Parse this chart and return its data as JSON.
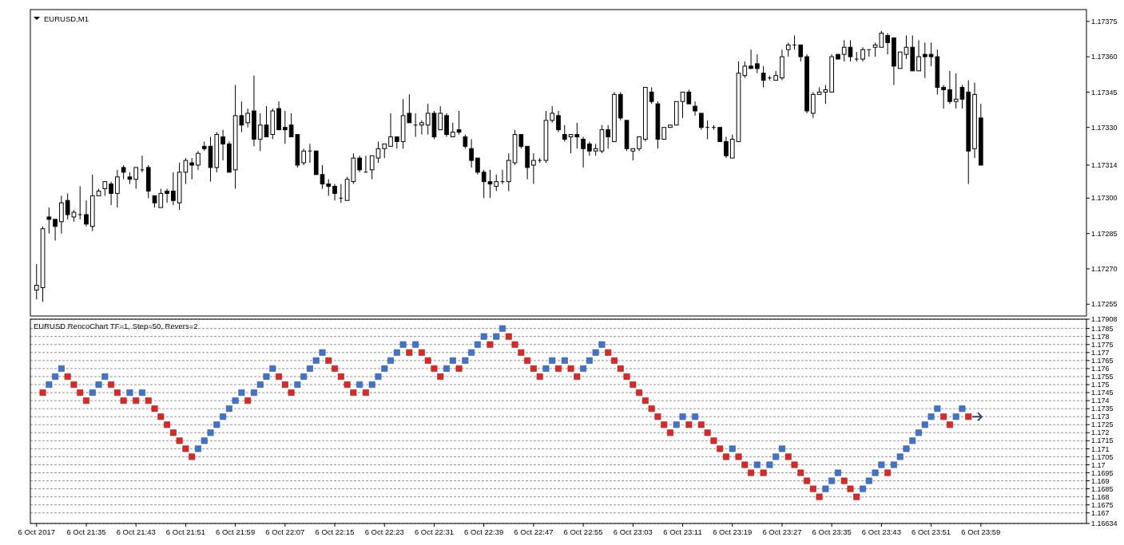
{
  "chart_data": [
    {
      "type": "candlestick",
      "title": "EURUSD,M1",
      "tick_labels": "y",
      "xlim": [
        "2017-10-06T21:26",
        "2017-10-07T00:16"
      ],
      "ylim": [
        1.1725,
        1.1738
      ],
      "yticks": [
        1.17255,
        {
          "value": 1.1727,
          "label": "1.17270"
        },
        1.17285,
        {
          "value": 1.173,
          "label": "1.17300"
        },
        1.17314,
        {
          "value": 1.1733,
          "label": "1.17330"
        },
        1.17345,
        {
          "value": 1.1736,
          "label": "1.17360"
        },
        1.17375
      ],
      "x": [
        "2017-10-06T21:27",
        "2017-10-06T21:28",
        "2017-10-06T21:29",
        "2017-10-06T21:30",
        "2017-10-06T21:31",
        "2017-10-06T21:32",
        "2017-10-06T21:33",
        "2017-10-06T21:34",
        "2017-10-06T21:35",
        "2017-10-06T21:36",
        "2017-10-06T21:37",
        "2017-10-06T21:38",
        "2017-10-06T21:39",
        "2017-10-06T21:40",
        "2017-10-06T21:41",
        "2017-10-06T21:42",
        "2017-10-06T21:43",
        "2017-10-06T21:44",
        "2017-10-06T21:45",
        "2017-10-06T21:46",
        "2017-10-06T21:47",
        "2017-10-06T21:48",
        "2017-10-06T21:49",
        "2017-10-06T21:50",
        "2017-10-06T21:51",
        "2017-10-06T21:52",
        "2017-10-06T21:53",
        "2017-10-06T21:54",
        "2017-10-06T21:55",
        "2017-10-06T21:56",
        "2017-10-06T21:57",
        "2017-10-06T21:58",
        "2017-10-06T21:59",
        "2017-10-06T22:00",
        "2017-10-06T22:01",
        "2017-10-06T22:02",
        "2017-10-06T22:03",
        "2017-10-06T22:04",
        "2017-10-06T22:05",
        "2017-10-06T22:06",
        "2017-10-06T22:07",
        "2017-10-06T22:08",
        "2017-10-06T22:09",
        "2017-10-06T22:10",
        "2017-10-06T22:11",
        "2017-10-06T22:12",
        "2017-10-06T22:13",
        "2017-10-06T22:14",
        "2017-10-06T22:15",
        "2017-10-06T22:16",
        "2017-10-06T22:17",
        "2017-10-06T22:18",
        "2017-10-06T22:19",
        "2017-10-06T22:20",
        "2017-10-06T22:21",
        "2017-10-06T22:22",
        "2017-10-06T22:23",
        "2017-10-06T22:24",
        "2017-10-06T22:25",
        "2017-10-06T22:26",
        "2017-10-06T22:27",
        "2017-10-06T22:28",
        "2017-10-06T22:29",
        "2017-10-06T22:30",
        "2017-10-06T22:31",
        "2017-10-06T22:32",
        "2017-10-06T22:33",
        "2017-10-06T22:34",
        "2017-10-06T22:35",
        "2017-10-06T22:36",
        "2017-10-06T22:37",
        "2017-10-06T22:38",
        "2017-10-06T22:39",
        "2017-10-06T22:40",
        "2017-10-06T22:41",
        "2017-10-06T22:42",
        "2017-10-06T22:43",
        "2017-10-06T22:44",
        "2017-10-06T22:45",
        "2017-10-06T22:46",
        "2017-10-06T22:47",
        "2017-10-06T22:48",
        "2017-10-06T22:49",
        "2017-10-06T22:50",
        "2017-10-06T22:51",
        "2017-10-06T22:52",
        "2017-10-06T22:53",
        "2017-10-06T22:54",
        "2017-10-06T22:55",
        "2017-10-06T22:56",
        "2017-10-06T22:57",
        "2017-10-06T22:58",
        "2017-10-06T22:59",
        "2017-10-06T23:00",
        "2017-10-06T23:01",
        "2017-10-06T23:02",
        "2017-10-06T23:03",
        "2017-10-06T23:04",
        "2017-10-06T23:05",
        "2017-10-06T23:06",
        "2017-10-06T23:07",
        "2017-10-06T23:08",
        "2017-10-06T23:09",
        "2017-10-06T23:10",
        "2017-10-06T23:11",
        "2017-10-06T23:12",
        "2017-10-06T23:13",
        "2017-10-06T23:14",
        "2017-10-06T23:15",
        "2017-10-06T23:16",
        "2017-10-06T23:17",
        "2017-10-06T23:18",
        "2017-10-06T23:19",
        "2017-10-06T23:20",
        "2017-10-06T23:21",
        "2017-10-06T23:22",
        "2017-10-06T23:23",
        "2017-10-06T23:24",
        "2017-10-06T23:25",
        "2017-10-06T23:26",
        "2017-10-06T23:27",
        "2017-10-06T23:28",
        "2017-10-06T23:29",
        "2017-10-06T23:30",
        "2017-10-06T23:31",
        "2017-10-06T23:32",
        "2017-10-06T23:33",
        "2017-10-06T23:34",
        "2017-10-06T23:35",
        "2017-10-06T23:36",
        "2017-10-06T23:37",
        "2017-10-06T23:38",
        "2017-10-06T23:39",
        "2017-10-06T23:40",
        "2017-10-06T23:41",
        "2017-10-06T23:42",
        "2017-10-06T23:43",
        "2017-10-06T23:44",
        "2017-10-06T23:45",
        "2017-10-06T23:46",
        "2017-10-06T23:47",
        "2017-10-06T23:48",
        "2017-10-06T23:49",
        "2017-10-06T23:50",
        "2017-10-06T23:51",
        "2017-10-06T23:52",
        "2017-10-06T23:53",
        "2017-10-06T23:54",
        "2017-10-06T23:55",
        "2017-10-06T23:56",
        "2017-10-06T23:57",
        "2017-10-06T23:58",
        "2017-10-06T23:59"
      ],
      "ohlc": [
        [
          1.17261,
          1.17272,
          1.17257,
          1.17263
        ],
        [
          1.17262,
          1.17288,
          1.17256,
          1.17287
        ],
        [
          1.17292,
          1.17296,
          1.17285,
          1.17291
        ],
        [
          1.17291,
          1.17291,
          1.17282,
          1.17288
        ],
        [
          1.1729,
          1.17301,
          1.17285,
          1.17298
        ],
        [
          1.17299,
          1.17302,
          1.17291,
          1.17293
        ],
        [
          1.17292,
          1.17295,
          1.1729,
          1.17294
        ],
        [
          1.17293,
          1.17305,
          1.17291,
          1.17293
        ],
        [
          1.17293,
          1.17299,
          1.17288,
          1.17289
        ],
        [
          1.17288,
          1.1731,
          1.17286,
          1.17301
        ],
        [
          1.17301,
          1.17304,
          1.17301,
          1.17303
        ],
        [
          1.17304,
          1.17307,
          1.17301,
          1.17307
        ],
        [
          1.17306,
          1.17307,
          1.17297,
          1.17302
        ],
        [
          1.17302,
          1.17312,
          1.17296,
          1.17309
        ],
        [
          1.17313,
          1.17314,
          1.17308,
          1.17311
        ],
        [
          1.17309,
          1.17311,
          1.17306,
          1.17308
        ],
        [
          1.17308,
          1.17313,
          1.17304,
          1.17313
        ],
        [
          1.17312,
          1.17318,
          1.17311,
          1.17312
        ],
        [
          1.17313,
          1.17314,
          1.173,
          1.17303
        ],
        [
          1.17301,
          1.17301,
          1.17296,
          1.17298
        ],
        [
          1.17296,
          1.17304,
          1.17296,
          1.17302
        ],
        [
          1.17303,
          1.17304,
          1.17298,
          1.17302
        ],
        [
          1.17303,
          1.17311,
          1.17297,
          1.17299
        ],
        [
          1.17298,
          1.17315,
          1.17295,
          1.17311
        ],
        [
          1.17311,
          1.17317,
          1.17306,
          1.17316
        ],
        [
          1.17315,
          1.17317,
          1.17308,
          1.17314
        ],
        [
          1.17314,
          1.1732,
          1.17312,
          1.17319
        ],
        [
          1.17322,
          1.17324,
          1.1732,
          1.17321
        ],
        [
          1.17322,
          1.17326,
          1.17307,
          1.17313
        ],
        [
          1.17313,
          1.17328,
          1.17311,
          1.17327
        ],
        [
          1.17326,
          1.17329,
          1.17316,
          1.17323
        ],
        [
          1.17323,
          1.17324,
          1.17311,
          1.17311
        ],
        [
          1.17312,
          1.17348,
          1.17304,
          1.17335
        ],
        [
          1.17335,
          1.17341,
          1.17328,
          1.17331
        ],
        [
          1.17332,
          1.17338,
          1.1733,
          1.17336
        ],
        [
          1.17337,
          1.17352,
          1.17322,
          1.17325
        ],
        [
          1.17325,
          1.17336,
          1.1732,
          1.17331
        ],
        [
          1.17331,
          1.17339,
          1.17326,
          1.17326
        ],
        [
          1.17327,
          1.17338,
          1.17325,
          1.17337
        ],
        [
          1.17338,
          1.17341,
          1.17329,
          1.17329
        ],
        [
          1.1733,
          1.17337,
          1.17323,
          1.17329
        ],
        [
          1.17331,
          1.17336,
          1.17326,
          1.17326
        ],
        [
          1.17327,
          1.17327,
          1.17313,
          1.17314
        ],
        [
          1.17315,
          1.17321,
          1.17314,
          1.1732
        ],
        [
          1.1732,
          1.17323,
          1.17315,
          1.1732
        ],
        [
          1.1732,
          1.1732,
          1.1731,
          1.1731
        ],
        [
          1.1731,
          1.17314,
          1.17304,
          1.17306
        ],
        [
          1.17306,
          1.17308,
          1.17301,
          1.17305
        ],
        [
          1.17305,
          1.17306,
          1.17299,
          1.17302
        ],
        [
          1.173,
          1.17306,
          1.17298,
          1.173
        ],
        [
          1.17299,
          1.17309,
          1.17299,
          1.17308
        ],
        [
          1.17307,
          1.17319,
          1.17306,
          1.17317
        ],
        [
          1.17317,
          1.17318,
          1.17311,
          1.17312
        ],
        [
          1.17311,
          1.17318,
          1.17311,
          1.17311
        ],
        [
          1.17312,
          1.17318,
          1.17308,
          1.17318
        ],
        [
          1.17317,
          1.17324,
          1.17315,
          1.17321
        ],
        [
          1.17321,
          1.17323,
          1.17317,
          1.17323
        ],
        [
          1.17322,
          1.17336,
          1.17322,
          1.17326
        ],
        [
          1.17326,
          1.17326,
          1.17321,
          1.17324
        ],
        [
          1.17324,
          1.17342,
          1.17321,
          1.17335
        ],
        [
          1.17336,
          1.17344,
          1.17332,
          1.17332
        ],
        [
          1.17331,
          1.17336,
          1.17326,
          1.17331
        ],
        [
          1.17331,
          1.17333,
          1.17327,
          1.17332
        ],
        [
          1.17331,
          1.1734,
          1.17327,
          1.17336
        ],
        [
          1.17336,
          1.17337,
          1.17325,
          1.17326
        ],
        [
          1.17329,
          1.17339,
          1.17329,
          1.17336
        ],
        [
          1.17335,
          1.17336,
          1.17326,
          1.17327
        ],
        [
          1.17326,
          1.17332,
          1.17326,
          1.17328
        ],
        [
          1.17329,
          1.17337,
          1.17327,
          1.17328
        ],
        [
          1.17326,
          1.17327,
          1.17321,
          1.17322
        ],
        [
          1.17321,
          1.17325,
          1.17313,
          1.17316
        ],
        [
          1.17317,
          1.17317,
          1.1731,
          1.17311
        ],
        [
          1.17311,
          1.17312,
          1.173,
          1.17307
        ],
        [
          1.17307,
          1.17312,
          1.173,
          1.17306
        ],
        [
          1.17305,
          1.1731,
          1.17303,
          1.17307
        ],
        [
          1.17307,
          1.17312,
          1.17306,
          1.17307
        ],
        [
          1.17307,
          1.17319,
          1.17303,
          1.17316
        ],
        [
          1.17315,
          1.17329,
          1.17314,
          1.17327
        ],
        [
          1.17327,
          1.17327,
          1.17321,
          1.17322
        ],
        [
          1.17322,
          1.17322,
          1.17308,
          1.17313
        ],
        [
          1.17314,
          1.17319,
          1.17306,
          1.17316
        ],
        [
          1.17316,
          1.17317,
          1.17315,
          1.17316
        ],
        [
          1.17316,
          1.17337,
          1.17315,
          1.17333
        ],
        [
          1.17333,
          1.17339,
          1.17332,
          1.17336
        ],
        [
          1.17335,
          1.17337,
          1.17328,
          1.17329
        ],
        [
          1.17327,
          1.17331,
          1.17324,
          1.17325
        ],
        [
          1.17326,
          1.17327,
          1.17319,
          1.17327
        ],
        [
          1.17327,
          1.17332,
          1.17321,
          1.17326
        ],
        [
          1.17325,
          1.17326,
          1.17313,
          1.17321
        ],
        [
          1.17323,
          1.17324,
          1.17318,
          1.1732
        ],
        [
          1.1732,
          1.17323,
          1.17318,
          1.17321
        ],
        [
          1.1732,
          1.17331,
          1.17319,
          1.17329
        ],
        [
          1.17329,
          1.17331,
          1.17321,
          1.17326
        ],
        [
          1.17324,
          1.17345,
          1.17324,
          1.17344
        ],
        [
          1.17344,
          1.17345,
          1.17333,
          1.17334
        ],
        [
          1.17333,
          1.17333,
          1.1732,
          1.17321
        ],
        [
          1.1732,
          1.17321,
          1.17316,
          1.17321
        ],
        [
          1.17321,
          1.17326,
          1.1732,
          1.17326
        ],
        [
          1.17325,
          1.17347,
          1.17324,
          1.17347
        ],
        [
          1.17345,
          1.17347,
          1.1734,
          1.17341
        ],
        [
          1.1734,
          1.17341,
          1.17321,
          1.17325
        ],
        [
          1.17325,
          1.1733,
          1.17325,
          1.1733
        ],
        [
          1.1733,
          1.17331,
          1.1733,
          1.17331
        ],
        [
          1.17331,
          1.17341,
          1.17331,
          1.17341
        ],
        [
          1.17341,
          1.17345,
          1.17334,
          1.17345
        ],
        [
          1.17345,
          1.17346,
          1.1734,
          1.1734
        ],
        [
          1.17339,
          1.17341,
          1.17335,
          1.17337
        ],
        [
          1.17336,
          1.17336,
          1.17329,
          1.1733
        ],
        [
          1.1733,
          1.17333,
          1.17325,
          1.1733
        ],
        [
          1.1733,
          1.17331,
          1.17329,
          1.1733
        ],
        [
          1.1733,
          1.1733,
          1.17324,
          1.17324
        ],
        [
          1.17324,
          1.17326,
          1.17317,
          1.17318
        ],
        [
          1.17317,
          1.17327,
          1.17317,
          1.17325
        ],
        [
          1.17324,
          1.17358,
          1.17324,
          1.17353
        ],
        [
          1.17352,
          1.17358,
          1.17351,
          1.17356
        ],
        [
          1.17356,
          1.17363,
          1.17355,
          1.17355
        ],
        [
          1.17357,
          1.17361,
          1.17353,
          1.17355
        ],
        [
          1.17353,
          1.17356,
          1.17347,
          1.1735
        ],
        [
          1.17351,
          1.17352,
          1.1735,
          1.17351
        ],
        [
          1.1735,
          1.17354,
          1.1735,
          1.17352
        ],
        [
          1.17351,
          1.17363,
          1.1735,
          1.1736
        ],
        [
          1.17363,
          1.17366,
          1.1736,
          1.17365
        ],
        [
          1.17365,
          1.17369,
          1.17363,
          1.17365
        ],
        [
          1.17365,
          1.17365,
          1.17358,
          1.1736
        ],
        [
          1.1736,
          1.17361,
          1.17336,
          1.17337
        ],
        [
          1.17336,
          1.17345,
          1.17334,
          1.17344
        ],
        [
          1.17344,
          1.17347,
          1.17344,
          1.17345
        ],
        [
          1.17345,
          1.17348,
          1.1734,
          1.17346
        ],
        [
          1.17345,
          1.17361,
          1.17345,
          1.1736
        ],
        [
          1.17361,
          1.17361,
          1.17359,
          1.17359
        ],
        [
          1.17361,
          1.17367,
          1.17358,
          1.17364
        ],
        [
          1.17364,
          1.17367,
          1.17358,
          1.1736
        ],
        [
          1.17359,
          1.17362,
          1.17358,
          1.17359
        ],
        [
          1.17359,
          1.17364,
          1.17358,
          1.17363
        ],
        [
          1.17363,
          1.17363,
          1.1736,
          1.17363
        ],
        [
          1.17364,
          1.17366,
          1.1736,
          1.17365
        ],
        [
          1.17364,
          1.17371,
          1.17364,
          1.1737
        ],
        [
          1.17369,
          1.1737,
          1.17361,
          1.17366
        ],
        [
          1.17368,
          1.17368,
          1.17348,
          1.17356
        ],
        [
          1.17355,
          1.17362,
          1.17355,
          1.17362
        ],
        [
          1.17361,
          1.17369,
          1.17359,
          1.17364
        ],
        [
          1.17364,
          1.17369,
          1.17354,
          1.17354
        ],
        [
          1.17354,
          1.17367,
          1.17354,
          1.1736
        ],
        [
          1.17361,
          1.17366,
          1.17351,
          1.1736
        ],
        [
          1.17361,
          1.17366,
          1.17356,
          1.1736
        ],
        [
          1.1736,
          1.17363,
          1.17344,
          1.17347
        ],
        [
          1.17347,
          1.17348,
          1.17338,
          1.17346
        ],
        [
          1.17346,
          1.17354,
          1.1734,
          1.17341
        ],
        [
          1.17341,
          1.17353,
          1.17338,
          1.17342
        ],
        [
          1.17347,
          1.17348,
          1.17338,
          1.17342
        ],
        [
          1.17345,
          1.1735,
          1.17306,
          1.1732
        ],
        [
          1.17321,
          1.17349,
          1.17317,
          1.17344
        ],
        [
          1.17334,
          1.1734,
          1.17314,
          1.17314
        ]
      ]
    },
    {
      "type": "scatter",
      "title": "EURUSD RencoChart TF=1, Step=50, Revers=2",
      "marker": "square",
      "grid": "y",
      "xlim": [
        "2017-10-06T21:26",
        "2017-10-07T00:16"
      ],
      "ylim": [
        1.16634,
        1.17908
      ],
      "xticks": [
        {
          "value": "2017-10-06T21:27",
          "label": "6 Oct 2017"
        },
        {
          "value": "2017-10-06T21:35",
          "label": "6 Oct 21:35"
        },
        {
          "value": "2017-10-06T21:43",
          "label": "6 Oct 21:43"
        },
        {
          "value": "2017-10-06T21:51",
          "label": "6 Oct 21:51"
        },
        {
          "value": "2017-10-06T21:59",
          "label": "6 Oct 21:59"
        },
        {
          "value": "2017-10-06T22:07",
          "label": "6 Oct 22:07"
        },
        {
          "value": "2017-10-06T22:15",
          "label": "6 Oct 22:15"
        },
        {
          "value": "2017-10-06T22:23",
          "label": "6 Oct 22:23"
        },
        {
          "value": "2017-10-06T22:31",
          "label": "6 Oct 22:31"
        },
        {
          "value": "2017-10-06T22:39",
          "label": "6 Oct 22:39"
        },
        {
          "value": "2017-10-06T22:47",
          "label": "6 Oct 22:47"
        },
        {
          "value": "2017-10-06T22:55",
          "label": "6 Oct 22:55"
        },
        {
          "value": "2017-10-06T23:03",
          "label": "6 Oct 23:03"
        },
        {
          "value": "2017-10-06T23:11",
          "label": "6 Oct 23:11"
        },
        {
          "value": "2017-10-06T23:19",
          "label": "6 Oct 23:19"
        },
        {
          "value": "2017-10-06T23:27",
          "label": "6 Oct 23:27"
        },
        {
          "value": "2017-10-06T23:35",
          "label": "6 Oct 23:35"
        },
        {
          "value": "2017-10-06T23:43",
          "label": "6 Oct 23:43"
        },
        {
          "value": "2017-10-06T23:51",
          "label": "6 Oct 23:51"
        },
        {
          "value": "2017-10-06T23:59",
          "label": "6 Oct 23:59"
        }
      ],
      "yticks": [
        1.16634,
        1.167,
        1.1675,
        1.168,
        1.1685,
        1.169,
        1.1695,
        1.17,
        1.1705,
        1.171,
        1.1715,
        1.172,
        1.1725,
        1.173,
        1.1735,
        1.174,
        1.1745,
        1.175,
        1.1755,
        1.176,
        1.1765,
        1.177,
        1.1775,
        1.178,
        1.1785,
        1.17908
      ],
      "series": [
        {
          "color": "#4472c4",
          "x": [
            "2017-10-06T21:29",
            "2017-10-06T21:30",
            "2017-10-06T21:31",
            "2017-10-06T21:36",
            "2017-10-06T21:37",
            "2017-10-06T21:38",
            "2017-10-06T21:42",
            "2017-10-06T21:44",
            "2017-10-06T21:53",
            "2017-10-06T21:54",
            "2017-10-06T21:55",
            "2017-10-06T21:56",
            "2017-10-06T21:57",
            "2017-10-06T21:58",
            "2017-10-06T21:59",
            "2017-10-06T22:00",
            "2017-10-06T22:02",
            "2017-10-06T22:03",
            "2017-10-06T22:04",
            "2017-10-06T22:05",
            "2017-10-06T22:09",
            "2017-10-06T22:10",
            "2017-10-06T22:11",
            "2017-10-06T22:12",
            "2017-10-06T22:13",
            "2017-10-06T22:19",
            "2017-10-06T22:21",
            "2017-10-06T22:22",
            "2017-10-06T22:23",
            "2017-10-06T22:24",
            "2017-10-06T22:25",
            "2017-10-06T22:26",
            "2017-10-06T22:28",
            "2017-10-06T22:33",
            "2017-10-06T22:34",
            "2017-10-06T22:36",
            "2017-10-06T22:37",
            "2017-10-06T22:38",
            "2017-10-06T22:39",
            "2017-10-06T22:41",
            "2017-10-06T22:42",
            "2017-10-06T22:49",
            "2017-10-06T22:50",
            "2017-10-06T22:52",
            "2017-10-06T22:55",
            "2017-10-06T22:56",
            "2017-10-06T22:57",
            "2017-10-06T22:58",
            "2017-10-06T23:10",
            "2017-10-06T23:11",
            "2017-10-06T23:13",
            "2017-10-06T23:19",
            "2017-10-06T23:23",
            "2017-10-06T23:25",
            "2017-10-06T23:26",
            "2017-10-06T23:27",
            "2017-10-06T23:34",
            "2017-10-06T23:35",
            "2017-10-06T23:36",
            "2017-10-06T23:40",
            "2017-10-06T23:41",
            "2017-10-06T23:42",
            "2017-10-06T23:43",
            "2017-10-06T23:45",
            "2017-10-06T23:46",
            "2017-10-06T23:47",
            "2017-10-06T23:48",
            "2017-10-06T23:49",
            "2017-10-06T23:50",
            "2017-10-06T23:51",
            "2017-10-06T23:52",
            "2017-10-06T23:55",
            "2017-10-06T23:56"
          ],
          "values": [
            1.175,
            1.1755,
            1.176,
            1.1745,
            1.175,
            1.1755,
            1.1745,
            1.1745,
            1.171,
            1.1715,
            1.172,
            1.1725,
            1.173,
            1.1735,
            1.174,
            1.1745,
            1.1745,
            1.175,
            1.1755,
            1.176,
            1.175,
            1.1755,
            1.176,
            1.1765,
            1.177,
            1.175,
            1.175,
            1.1755,
            1.176,
            1.1765,
            1.177,
            1.1775,
            1.1775,
            1.176,
            1.1765,
            1.1765,
            1.177,
            1.1775,
            1.178,
            1.178,
            1.1785,
            1.176,
            1.1765,
            1.1765,
            1.176,
            1.1765,
            1.177,
            1.1775,
            1.1725,
            1.173,
            1.173,
            1.171,
            1.17,
            1.17,
            1.1705,
            1.171,
            1.1685,
            1.169,
            1.1695,
            1.1685,
            1.169,
            1.1695,
            1.17,
            1.17,
            1.1705,
            1.171,
            1.1715,
            1.172,
            1.1725,
            1.173,
            1.1735,
            1.173,
            1.1735
          ]
        },
        {
          "color": "#d42a2a",
          "x": [
            "2017-10-06T21:28",
            "2017-10-06T21:32",
            "2017-10-06T21:33",
            "2017-10-06T21:34",
            "2017-10-06T21:35",
            "2017-10-06T21:39",
            "2017-10-06T21:40",
            "2017-10-06T21:41",
            "2017-10-06T21:43",
            "2017-10-06T21:45",
            "2017-10-06T21:46",
            "2017-10-06T21:47",
            "2017-10-06T21:48",
            "2017-10-06T21:49",
            "2017-10-06T21:50",
            "2017-10-06T21:51",
            "2017-10-06T21:52",
            "2017-10-06T22:01",
            "2017-10-06T22:06",
            "2017-10-06T22:07",
            "2017-10-06T22:08",
            "2017-10-06T22:14",
            "2017-10-06T22:15",
            "2017-10-06T22:16",
            "2017-10-06T22:17",
            "2017-10-06T22:18",
            "2017-10-06T22:20",
            "2017-10-06T22:27",
            "2017-10-06T22:29",
            "2017-10-06T22:30",
            "2017-10-06T22:31",
            "2017-10-06T22:32",
            "2017-10-06T22:35",
            "2017-10-06T22:40",
            "2017-10-06T22:43",
            "2017-10-06T22:44",
            "2017-10-06T22:45",
            "2017-10-06T22:46",
            "2017-10-06T22:47",
            "2017-10-06T22:48",
            "2017-10-06T22:51",
            "2017-10-06T22:53",
            "2017-10-06T22:54",
            "2017-10-06T22:59",
            "2017-10-06T23:00",
            "2017-10-06T23:01",
            "2017-10-06T23:02",
            "2017-10-06T23:03",
            "2017-10-06T23:04",
            "2017-10-06T23:05",
            "2017-10-06T23:06",
            "2017-10-06T23:07",
            "2017-10-06T23:08",
            "2017-10-06T23:09",
            "2017-10-06T23:12",
            "2017-10-06T23:14",
            "2017-10-06T23:15",
            "2017-10-06T23:16",
            "2017-10-06T23:17",
            "2017-10-06T23:18",
            "2017-10-06T23:20",
            "2017-10-06T23:21",
            "2017-10-06T23:22",
            "2017-10-06T23:24",
            "2017-10-06T23:28",
            "2017-10-06T23:29",
            "2017-10-06T23:30",
            "2017-10-06T23:31",
            "2017-10-06T23:32",
            "2017-10-06T23:33",
            "2017-10-06T23:37",
            "2017-10-06T23:38",
            "2017-10-06T23:39",
            "2017-10-06T23:44",
            "2017-10-06T23:53",
            "2017-10-06T23:54",
            "2017-10-06T23:57"
          ],
          "values": [
            1.1745,
            1.1755,
            1.175,
            1.1745,
            1.174,
            1.175,
            1.1745,
            1.174,
            1.174,
            1.174,
            1.1735,
            1.173,
            1.1725,
            1.172,
            1.1715,
            1.171,
            1.1705,
            1.174,
            1.1755,
            1.175,
            1.1745,
            1.1765,
            1.176,
            1.1755,
            1.175,
            1.1745,
            1.1745,
            1.177,
            1.177,
            1.1765,
            1.176,
            1.1755,
            1.176,
            1.1775,
            1.178,
            1.1775,
            1.177,
            1.1765,
            1.176,
            1.1755,
            1.176,
            1.176,
            1.1755,
            1.177,
            1.1765,
            1.176,
            1.1755,
            1.175,
            1.1745,
            1.174,
            1.1735,
            1.173,
            1.1725,
            1.172,
            1.1725,
            1.1725,
            1.172,
            1.1715,
            1.171,
            1.1705,
            1.1705,
            1.17,
            1.1695,
            1.1695,
            1.1705,
            1.17,
            1.1695,
            1.169,
            1.1685,
            1.168,
            1.169,
            1.1685,
            1.168,
            1.1695,
            1.173,
            1.1725,
            1.173
          ]
        }
      ]
    }
  ]
}
